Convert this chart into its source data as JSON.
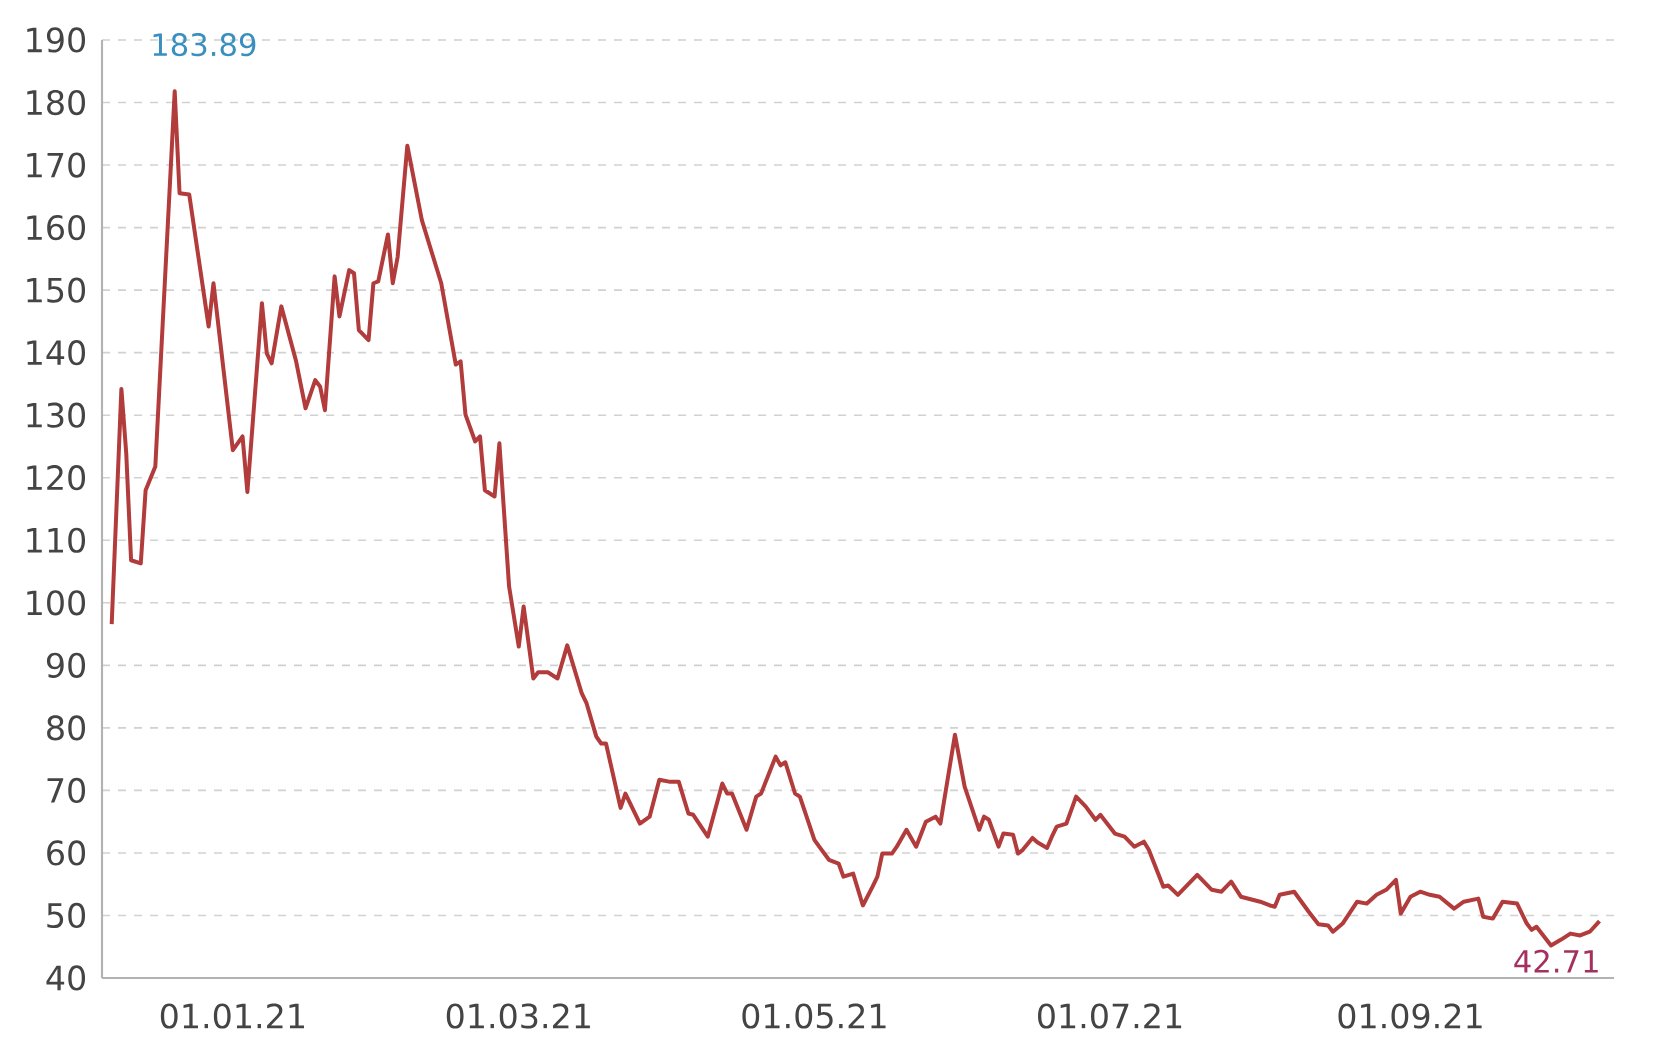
{
  "chart_data": {
    "type": "line",
    "x": [
      "2020-12-07",
      "2020-12-09",
      "2020-12-10",
      "2020-12-11",
      "2020-12-13",
      "2020-12-14",
      "2020-12-16",
      "2020-12-20",
      "2020-12-21",
      "2020-12-23",
      "2020-12-27",
      "2020-12-28",
      "2021-01-01",
      "2021-01-03",
      "2021-01-04",
      "2021-01-07",
      "2021-01-08",
      "2021-01-09",
      "2021-01-11",
      "2021-01-14",
      "2021-01-16",
      "2021-01-18",
      "2021-01-19",
      "2021-01-20",
      "2021-01-22",
      "2021-01-23",
      "2021-01-25",
      "2021-01-26",
      "2021-01-27",
      "2021-01-29",
      "2021-01-30",
      "2021-01-31",
      "2021-02-02",
      "2021-02-03",
      "2021-02-04",
      "2021-02-06",
      "2021-02-09",
      "2021-02-13",
      "2021-02-16",
      "2021-02-17",
      "2021-02-18",
      "2021-02-20",
      "2021-02-21",
      "2021-02-22",
      "2021-02-24",
      "2021-02-25",
      "2021-02-27",
      "2021-03-01",
      "2021-03-02",
      "2021-03-04",
      "2021-03-05",
      "2021-03-07",
      "2021-03-09",
      "2021-03-11",
      "2021-03-14",
      "2021-03-15",
      "2021-03-17",
      "2021-03-18",
      "2021-03-19",
      "2021-03-22",
      "2021-03-23",
      "2021-03-26",
      "2021-03-28",
      "2021-03-30",
      "2021-04-01",
      "2021-04-03",
      "2021-04-05",
      "2021-04-06",
      "2021-04-09",
      "2021-04-12",
      "2021-04-13",
      "2021-04-14",
      "2021-04-17",
      "2021-04-19",
      "2021-04-20",
      "2021-04-23",
      "2021-04-24",
      "2021-04-25",
      "2021-04-27",
      "2021-04-28",
      "2021-05-01",
      "2021-05-02",
      "2021-05-04",
      "2021-05-06",
      "2021-05-07",
      "2021-05-09",
      "2021-05-11",
      "2021-05-13",
      "2021-05-14",
      "2021-05-15",
      "2021-05-17",
      "2021-05-18",
      "2021-05-20",
      "2021-05-22",
      "2021-05-24",
      "2021-05-26",
      "2021-05-27",
      "2021-05-30",
      "2021-06-01",
      "2021-06-04",
      "2021-06-05",
      "2021-06-06",
      "2021-06-08",
      "2021-06-09",
      "2021-06-11",
      "2021-06-12",
      "2021-06-13",
      "2021-06-15",
      "2021-06-16",
      "2021-06-18",
      "2021-06-19",
      "2021-06-20",
      "2021-06-22",
      "2021-06-24",
      "2021-06-26",
      "2021-06-28",
      "2021-06-29",
      "2021-07-02",
      "2021-07-04",
      "2021-07-06",
      "2021-07-08",
      "2021-07-09",
      "2021-07-12",
      "2021-07-13",
      "2021-07-15",
      "2021-07-19",
      "2021-07-20",
      "2021-07-22",
      "2021-07-24",
      "2021-07-26",
      "2021-07-28",
      "2021-08-01",
      "2021-08-03",
      "2021-08-04",
      "2021-08-05",
      "2021-08-08",
      "2021-08-11",
      "2021-08-13",
      "2021-08-15",
      "2021-08-16",
      "2021-08-18",
      "2021-08-21",
      "2021-08-23",
      "2021-08-25",
      "2021-08-27",
      "2021-08-29",
      "2021-08-30",
      "2021-09-01",
      "2021-09-03",
      "2021-09-05",
      "2021-09-07",
      "2021-09-10",
      "2021-09-12",
      "2021-09-15",
      "2021-09-16",
      "2021-09-18",
      "2021-09-20",
      "2021-09-23",
      "2021-09-25",
      "2021-09-26",
      "2021-09-27",
      "2021-09-30",
      "2021-10-02",
      "2021-10-04",
      "2021-10-06",
      "2021-10-08",
      "2021-10-10"
    ],
    "series": [
      {
        "color": "#b23b3b",
        "values": [
          96.6,
          134.2,
          123.9,
          106.8,
          106.3,
          118.0,
          121.8,
          181.8,
          165.5,
          165.3,
          144.2,
          151.1,
          124.4,
          126.6,
          117.7,
          147.9,
          139.9,
          138.3,
          147.4,
          138.8,
          131.1,
          135.6,
          134.6,
          130.8,
          152.2,
          145.8,
          153.2,
          152.7,
          143.6,
          142.0,
          151.1,
          151.4,
          158.9,
          151.1,
          155.3,
          173.1,
          161.2,
          151.1,
          138.1,
          138.6,
          130.1,
          125.8,
          126.6,
          118.0,
          117.0,
          125.5,
          102.6,
          93.0,
          99.4,
          87.9,
          88.9,
          88.9,
          87.9,
          93.2,
          85.5,
          83.9,
          78.6,
          77.5,
          77.5,
          67.2,
          69.5,
          64.7,
          65.8,
          71.7,
          71.4,
          71.4,
          66.3,
          66.1,
          62.6,
          71.1,
          69.5,
          69.5,
          63.7,
          69.0,
          69.5,
          75.4,
          74.0,
          74.5,
          69.5,
          69.0,
          62.1,
          61.0,
          58.9,
          58.3,
          56.2,
          56.7,
          51.6,
          54.6,
          56.2,
          59.9,
          59.9,
          61.0,
          63.7,
          61.0,
          65.0,
          65.8,
          64.7,
          78.9,
          70.6,
          63.7,
          65.8,
          65.3,
          61.0,
          63.1,
          62.9,
          59.9,
          60.5,
          62.4,
          61.7,
          60.8,
          62.6,
          64.2,
          64.7,
          69.0,
          67.4,
          65.3,
          66.1,
          63.1,
          62.6,
          61.0,
          61.8,
          60.5,
          54.6,
          54.8,
          53.3,
          56.5,
          55.7,
          54.1,
          53.8,
          55.4,
          53.0,
          52.2,
          51.6,
          51.4,
          53.3,
          53.8,
          50.6,
          48.6,
          48.4,
          47.4,
          48.7,
          52.2,
          51.9,
          53.3,
          54.1,
          55.7,
          50.3,
          53.0,
          53.8,
          53.3,
          53.0,
          51.1,
          52.2,
          52.7,
          49.8,
          49.5,
          52.2,
          51.9,
          48.7,
          47.7,
          48.2,
          45.2,
          46.1,
          47.1,
          46.8,
          47.4,
          49.1
        ]
      }
    ],
    "xlim": [
      "2020-12-05",
      "2021-10-13"
    ],
    "xticks": [
      {
        "value": "2021-01-01",
        "label": "01.01.21"
      },
      {
        "value": "2021-03-01",
        "label": "01.03.21"
      },
      {
        "value": "2021-05-01",
        "label": "01.05.21"
      },
      {
        "value": "2021-07-01",
        "label": "01.07.21"
      },
      {
        "value": "2021-09-01",
        "label": "01.09.21"
      }
    ],
    "ylim": [
      40,
      190
    ],
    "yticks": [
      40,
      50,
      60,
      70,
      80,
      90,
      100,
      110,
      120,
      130,
      140,
      150,
      160,
      170,
      180,
      190
    ],
    "grid": "y",
    "annotations": [
      "183.89",
      "42.71"
    ]
  }
}
